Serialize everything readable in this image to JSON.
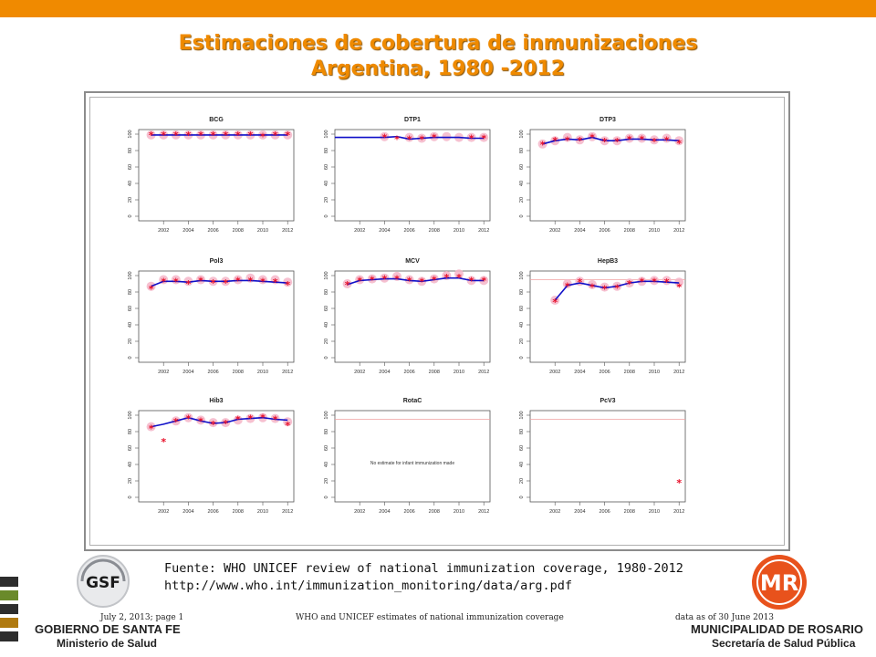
{
  "header": {
    "title_line1": "Estimaciones de cobertura de inmunizaciones",
    "title_line2": "Argentina, 1980 -2012",
    "accent_color": "#f08a00"
  },
  "figure": {
    "footer_left": "July 2, 2013; page 1",
    "footer_center": "WHO and UNICEF estimates of national immunization coverage",
    "footer_right": "data as of 30 June 2013"
  },
  "chart_data": [
    {
      "type": "line",
      "title": "BCG",
      "x": [
        2001,
        2002,
        2003,
        2004,
        2005,
        2006,
        2007,
        2008,
        2009,
        2010,
        2011,
        2012
      ],
      "series": [
        {
          "values": [
            99,
            99,
            99,
            99,
            99,
            99,
            99,
            99,
            99,
            99,
            99,
            99
          ]
        }
      ],
      "reported": [
        99,
        99,
        99,
        99,
        99,
        99,
        99,
        99,
        99,
        97,
        99,
        99
      ],
      "official": [
        99,
        99,
        99,
        99,
        99,
        99,
        99,
        99,
        99,
        99,
        99,
        99
      ],
      "ylim": [
        0,
        100
      ],
      "yticks": [
        0,
        20,
        40,
        60,
        80,
        100
      ],
      "xticks": [
        2002,
        2004,
        2006,
        2008,
        2010,
        2012
      ],
      "ref_line": null,
      "note": ""
    },
    {
      "type": "line",
      "title": "DTP1",
      "x": [
        2001,
        2002,
        2003,
        2004,
        2005,
        2006,
        2007,
        2008,
        2009,
        2010,
        2011,
        2012
      ],
      "series": [
        {
          "values": [
            96,
            96,
            96,
            96,
            97,
            94,
            95,
            96,
            96,
            96,
            95,
            95
          ]
        }
      ],
      "reported": [
        null,
        null,
        null,
        96,
        94,
        94,
        94,
        96,
        null,
        null,
        95,
        95
      ],
      "official": [
        null,
        null,
        null,
        97,
        null,
        96,
        95,
        97,
        97,
        96,
        96,
        96
      ],
      "ylim": [
        0,
        100
      ],
      "yticks": [
        0,
        20,
        40,
        60,
        80,
        100
      ],
      "xticks": [
        2002,
        2004,
        2006,
        2008,
        2010,
        2012
      ],
      "ref_line": null,
      "note": ""
    },
    {
      "type": "line",
      "title": "DTP3",
      "x": [
        2001,
        2002,
        2003,
        2004,
        2005,
        2006,
        2007,
        2008,
        2009,
        2010,
        2011,
        2012
      ],
      "series": [
        {
          "values": [
            88,
            92,
            94,
            93,
            96,
            92,
            92,
            94,
            94,
            93,
            93,
            92
          ]
        }
      ],
      "reported": [
        87,
        92,
        93,
        92,
        96,
        91,
        91,
        94,
        94,
        91,
        93,
        89
      ],
      "official": [
        88,
        92,
        96,
        93,
        97,
        92,
        92,
        95,
        95,
        93,
        95,
        92
      ],
      "ylim": [
        0,
        100
      ],
      "yticks": [
        0,
        20,
        40,
        60,
        80,
        100
      ],
      "xticks": [
        2002,
        2004,
        2006,
        2008,
        2010,
        2012
      ],
      "ref_line": null,
      "note": ""
    },
    {
      "type": "line",
      "title": "Pol3",
      "x": [
        2001,
        2002,
        2003,
        2004,
        2005,
        2006,
        2007,
        2008,
        2009,
        2010,
        2011,
        2012
      ],
      "series": [
        {
          "values": [
            87,
            93,
            93,
            92,
            94,
            93,
            93,
            94,
            94,
            93,
            92,
            91
          ]
        }
      ],
      "reported": [
        84,
        93,
        93,
        90,
        94,
        91,
        91,
        94,
        94,
        93,
        92,
        89
      ],
      "official": [
        87,
        95,
        95,
        93,
        95,
        93,
        93,
        95,
        97,
        95,
        95,
        92
      ],
      "ylim": [
        0,
        100
      ],
      "yticks": [
        0,
        20,
        40,
        60,
        80,
        100
      ],
      "xticks": [
        2002,
        2004,
        2006,
        2008,
        2010,
        2012
      ],
      "ref_line": null,
      "note": ""
    },
    {
      "type": "line",
      "title": "MCV",
      "x": [
        2001,
        2002,
        2003,
        2004,
        2005,
        2006,
        2007,
        2008,
        2009,
        2010,
        2011,
        2012
      ],
      "series": [
        {
          "values": [
            89,
            94,
            95,
            96,
            96,
            94,
            93,
            95,
            97,
            97,
            94,
            94
          ]
        }
      ],
      "reported": [
        89,
        94,
        95,
        96,
        96,
        94,
        93,
        95,
        98,
        98,
        94,
        94
      ],
      "official": [
        90,
        95,
        96,
        97,
        99,
        95,
        93,
        96,
        100,
        102,
        94,
        94
      ],
      "ylim": [
        0,
        100
      ],
      "yticks": [
        0,
        20,
        40,
        60,
        80,
        100
      ],
      "xticks": [
        2002,
        2004,
        2006,
        2008,
        2010,
        2012
      ],
      "ref_line": null,
      "note": ""
    },
    {
      "type": "line",
      "title": "HepB3",
      "x": [
        2002,
        2003,
        2004,
        2005,
        2006,
        2007,
        2008,
        2009,
        2010,
        2011,
        2012
      ],
      "series": [
        {
          "values": [
            70,
            88,
            91,
            88,
            85,
            87,
            91,
            93,
            93,
            92,
            91
          ]
        }
      ],
      "reported": [
        68,
        87,
        92,
        86,
        84,
        85,
        90,
        93,
        93,
        92,
        86
      ],
      "official": [
        70,
        90,
        93,
        89,
        86,
        87,
        91,
        93,
        94,
        94,
        92
      ],
      "ylim": [
        0,
        100
      ],
      "yticks": [
        0,
        20,
        40,
        60,
        80,
        100
      ],
      "xticks": [
        2002,
        2004,
        2006,
        2008,
        2010,
        2012
      ],
      "ref_line": 95,
      "note": ""
    },
    {
      "type": "line",
      "title": "Hib3",
      "x": [
        2001,
        2002,
        2003,
        2004,
        2005,
        2006,
        2007,
        2008,
        2009,
        2010,
        2011,
        2012
      ],
      "series": [
        {
          "values": [
            86,
            89,
            93,
            97,
            93,
            90,
            91,
            95,
            96,
            97,
            95,
            94
          ]
        }
      ],
      "reported": [
        84,
        68,
        92,
        96,
        93,
        89,
        90,
        95,
        96,
        97,
        95,
        88
      ],
      "official": [
        86,
        null,
        93,
        97,
        94,
        91,
        91,
        94,
        96,
        97,
        96,
        92
      ],
      "ylim": [
        0,
        100
      ],
      "yticks": [
        0,
        20,
        40,
        60,
        80,
        100
      ],
      "xticks": [
        2002,
        2004,
        2006,
        2008,
        2010,
        2012
      ],
      "ref_line": null,
      "note": ""
    },
    {
      "type": "line",
      "title": "RotaC",
      "x": [],
      "series": [],
      "reported": [],
      "official": [],
      "ylim": [
        0,
        100
      ],
      "yticks": [
        0,
        20,
        40,
        60,
        80,
        100
      ],
      "xticks": [
        2002,
        2004,
        2006,
        2008,
        2010,
        2012
      ],
      "ref_line": 95,
      "note": "No estimate for infant immunization made"
    },
    {
      "type": "line",
      "title": "PcV3",
      "x": [
        2012
      ],
      "series": [],
      "reported": [
        18
      ],
      "official": [],
      "ylim": [
        0,
        100
      ],
      "yticks": [
        0,
        20,
        40,
        60,
        80,
        100
      ],
      "xticks": [
        2002,
        2004,
        2006,
        2008,
        2010,
        2012
      ],
      "ref_line": 95,
      "note": ""
    }
  ],
  "source": {
    "line1": "Fuente: WHO UNICEF review of national immunization coverage, 1980-2012",
    "line2": "http://www.who.int/immunization_monitoring/data/arg.pdf"
  },
  "logos": {
    "left_logo_text": "GSF",
    "left_name": "GOBIERNO DE SANTA FE",
    "left_sub": "Ministerio de Salud",
    "right_logo_text": "MR",
    "right_name": "MUNICIPALIDAD DE ROSARIO",
    "right_sub": "Secretaría de Salud Pública"
  },
  "colors": {
    "estimate_line": "#1010c8",
    "reported_marker": "#e8102a",
    "official_marker": "#f5b5c8",
    "ref_line": "#f0a0a0"
  }
}
